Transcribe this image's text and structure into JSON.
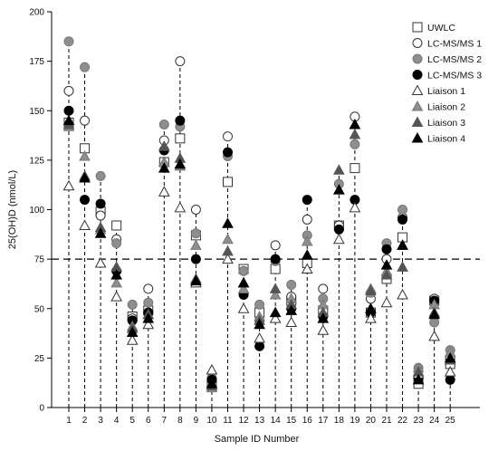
{
  "chart_data": {
    "type": "scatter",
    "xlabel": "Sample ID Number",
    "ylabel": "25(OH)D (nmol/L)",
    "x": [
      1,
      2,
      3,
      4,
      5,
      6,
      7,
      8,
      9,
      10,
      11,
      12,
      13,
      14,
      15,
      16,
      17,
      18,
      19,
      20,
      21,
      22,
      23,
      24,
      25
    ],
    "x_tick_labels": [
      "1",
      "2",
      "3",
      "4",
      "5",
      "6",
      "7",
      "8",
      "9",
      "10",
      "11",
      "12",
      "13",
      "14",
      "15",
      "16",
      "17",
      "18",
      "19",
      "20",
      "21",
      "22",
      "23",
      "24",
      "25"
    ],
    "ylim": [
      0,
      200
    ],
    "y_ticks": [
      0,
      25,
      50,
      75,
      100,
      125,
      150,
      175,
      200
    ],
    "y_tick_labels": [
      "0",
      "25",
      "50",
      "75",
      "100",
      "125",
      "150",
      "175",
      "200"
    ],
    "reference_line": {
      "y": 75,
      "style": "dashed"
    },
    "grid": false,
    "legend_position": "top-right",
    "series": [
      {
        "name": "UWLC",
        "marker": "square-open",
        "values": [
          144,
          131,
          99,
          92,
          46,
          49,
          124,
          136,
          87,
          12,
          114,
          70,
          48,
          70,
          54,
          73,
          49,
          92,
          121,
          48,
          65,
          86,
          12,
          54,
          22
        ]
      },
      {
        "name": "LC-MS/MS 1",
        "marker": "circle-open",
        "values": [
          160,
          145,
          97,
          85,
          45,
          60,
          135,
          175,
          100,
          14,
          137,
          69,
          44,
          82,
          56,
          95,
          60,
          92,
          147,
          55,
          75,
          96,
          16,
          55,
          25
        ]
      },
      {
        "name": "LC-MS/MS 2",
        "marker": "circle-gray",
        "values": [
          185,
          172,
          117,
          83,
          52,
          53,
          143,
          142,
          88,
          15,
          127,
          69,
          52,
          74,
          62,
          87,
          55,
          113,
          133,
          58,
          83,
          100,
          20,
          43,
          29
        ]
      },
      {
        "name": "LC-MS/MS 3",
        "marker": "circle-black",
        "values": [
          150,
          105,
          103,
          69,
          44,
          48,
          130,
          145,
          75,
          14,
          129,
          57,
          31,
          75,
          50,
          105,
          46,
          90,
          105,
          48,
          80,
          95,
          15,
          54,
          14
        ]
      },
      {
        "name": "Liaison 1",
        "marker": "triangle-open",
        "values": [
          112,
          92,
          73,
          56,
          34,
          42,
          109,
          101,
          63,
          19,
          75,
          50,
          35,
          45,
          43,
          70,
          39,
          85,
          101,
          45,
          53,
          57,
          17,
          36,
          18
        ]
      },
      {
        "name": "Liaison 2",
        "marker": "triangle-gray",
        "values": [
          142,
          127,
          90,
          63,
          41,
          47,
          124,
          122,
          82,
          10,
          85,
          60,
          46,
          57,
          55,
          84,
          52,
          110,
          143,
          60,
          69,
          82,
          20,
          52,
          28
        ]
      },
      {
        "name": "Liaison 3",
        "marker": "triangle-darkgray",
        "values": [
          143,
          117,
          91,
          71,
          40,
          47,
          132,
          126,
          65,
          11,
          79,
          63,
          44,
          60,
          52,
          77,
          48,
          120,
          138,
          59,
          67,
          71,
          18,
          48,
          24
        ]
      },
      {
        "name": "Liaison 4",
        "marker": "triangle-black",
        "values": [
          145,
          116,
          88,
          67,
          38,
          45,
          121,
          123,
          64,
          12,
          93,
          63,
          42,
          48,
          49,
          77,
          45,
          110,
          143,
          50,
          72,
          82,
          14,
          47,
          25
        ]
      }
    ]
  },
  "colors": {
    "open_fill": "#ffffff",
    "gray": "#8e8e8e",
    "dark_gray": "#555555",
    "black": "#000000",
    "axis": "#000000"
  }
}
